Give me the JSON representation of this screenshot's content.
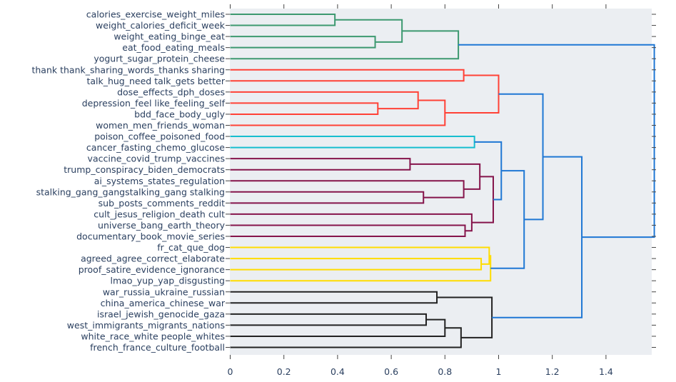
{
  "chart_data": {
    "type": "dendrogram",
    "orientation": "horizontal",
    "title": "",
    "xlabel": "",
    "ylabel": "",
    "xlim": [
      0,
      1.58
    ],
    "x_ticks": [
      0,
      0.2,
      0.4,
      0.6,
      0.8,
      1,
      1.2,
      1.4
    ],
    "x_tick_labels": [
      "0",
      "0.2",
      "0.4",
      "0.6",
      "0.8",
      "1",
      "1.2",
      "1.4"
    ],
    "leaves": [
      "calories_exercise_weight_miles",
      "weight_calories_deficit_week",
      "weight_eating_binge_eat",
      "eat_food_eating_meals",
      "yogurt_sugar_protein_cheese",
      "thank thank_sharing_words_thanks sharing",
      "talk_hug_need talk_gets better",
      "dose_effects_dph_doses",
      "depression_feel like_feeling_self",
      "bdd_face_body_ugly",
      "women_men_friends_woman",
      "poison_coffee_poisoned_food",
      "cancer_fasting_chemo_glucose",
      "vaccine_covid_trump_vaccines",
      "trump_conspiracy_biden_democrats",
      "ai_systems_states_regulation",
      "stalking_gang_gangstalking_gang stalking",
      "sub_posts_comments_reddit",
      "cult_jesus_religion_death cult",
      "universe_bang_earth_theory",
      "documentary_book_movie_series",
      "fr_cat_que_dog",
      "agreed_agree_correct_elaborate",
      "proof_satire_evidence_ignorance",
      "lmao_yup_yap_disgusting",
      "war_russia_ukraine_russian",
      "china_america_chinese_war",
      "israel_jewish_genocide_gaza",
      "west_immigrants_migrants_nations",
      "white_race_white people_whites",
      "french_france_culture_football"
    ],
    "links": [
      {
        "a": 0,
        "b": 1,
        "h": 0.39,
        "color": "green"
      },
      {
        "a": 2,
        "b": 3,
        "h": 0.54,
        "color": "green"
      },
      {
        "a": 0.5,
        "b": 2.5,
        "ha": 0.39,
        "hb": 0.54,
        "h": 0.64,
        "color": "green"
      },
      {
        "a": 1.5,
        "b": 4,
        "ha": 0.64,
        "h": 0.85,
        "color": "green"
      },
      {
        "a": 5,
        "b": 6,
        "h": 0.87,
        "color": "red"
      },
      {
        "a": 8,
        "b": 9,
        "h": 0.55,
        "color": "red"
      },
      {
        "a": 7,
        "b": 8.5,
        "hb": 0.55,
        "h": 0.7,
        "color": "red"
      },
      {
        "a": 7.75,
        "b": 10,
        "ha": 0.7,
        "h": 0.8,
        "color": "red"
      },
      {
        "a": 5.5,
        "b": 8.875,
        "ha": 0.87,
        "hb": 0.8,
        "h": 1.0,
        "color": "red"
      },
      {
        "a": 11,
        "b": 12,
        "h": 0.91,
        "color": "cyan"
      },
      {
        "a": 13,
        "b": 14,
        "h": 0.67,
        "color": "maroon"
      },
      {
        "a": 16,
        "b": 17,
        "h": 0.72,
        "color": "maroon"
      },
      {
        "a": 15,
        "b": 16.5,
        "hb": 0.72,
        "h": 0.87,
        "color": "maroon"
      },
      {
        "a": 13.5,
        "b": 15.75,
        "ha": 0.67,
        "hb": 0.87,
        "h": 0.93,
        "color": "maroon"
      },
      {
        "a": 19,
        "b": 20,
        "h": 0.875,
        "color": "maroon"
      },
      {
        "a": 18,
        "b": 19.5,
        "hb": 0.875,
        "h": 0.9,
        "color": "maroon"
      },
      {
        "a": 14.625,
        "b": 18.75,
        "ha": 0.93,
        "hb": 0.9,
        "h": 0.98,
        "color": "maroon"
      },
      {
        "a": 11.5,
        "b": 16.6875,
        "ha": 0.91,
        "hb": 0.98,
        "h": 1.01,
        "color": "blue"
      },
      {
        "a": 22,
        "b": 23,
        "h": 0.935,
        "color": "yellow"
      },
      {
        "a": 21,
        "b": 22.5,
        "hb": 0.935,
        "h": 0.965,
        "color": "yellow"
      },
      {
        "a": 21.75,
        "b": 24,
        "ha": 0.965,
        "h": 0.97,
        "color": "yellow"
      },
      {
        "a": 14.09375,
        "b": 22.875,
        "ha": 1.01,
        "hb": 0.97,
        "h": 1.095,
        "color": "blue"
      },
      {
        "a": 7.1875,
        "b": 18.484375,
        "ha": 1.0,
        "hb": 1.095,
        "h": 1.165,
        "color": "blue"
      },
      {
        "a": 25,
        "b": 26,
        "h": 0.77,
        "color": "black"
      },
      {
        "a": 27,
        "b": 28,
        "h": 0.73,
        "color": "black"
      },
      {
        "a": 27.5,
        "b": 29,
        "ha": 0.73,
        "h": 0.8,
        "color": "black"
      },
      {
        "a": 28.25,
        "b": 30,
        "ha": 0.8,
        "h": 0.86,
        "color": "black"
      },
      {
        "a": 25.5,
        "b": 29.125,
        "ha": 0.77,
        "hb": 0.86,
        "h": 0.975,
        "color": "black"
      },
      {
        "a": 12.8359375,
        "b": 27.3125,
        "ha": 1.165,
        "hb": 0.975,
        "h": 1.31,
        "color": "blue"
      },
      {
        "a": 2.75,
        "b": 20.07421875,
        "ha": 0.85,
        "hb": 1.31,
        "h": 1.58,
        "color": "blue"
      }
    ],
    "colors": {
      "green": "#3d9970",
      "red": "#ff4136",
      "cyan": "#17becf",
      "maroon": "#85144b",
      "yellow": "#ffdc00",
      "black": "#222222",
      "blue": "#1f77d4"
    },
    "plot_background": "#ebeef2",
    "grid": false
  }
}
